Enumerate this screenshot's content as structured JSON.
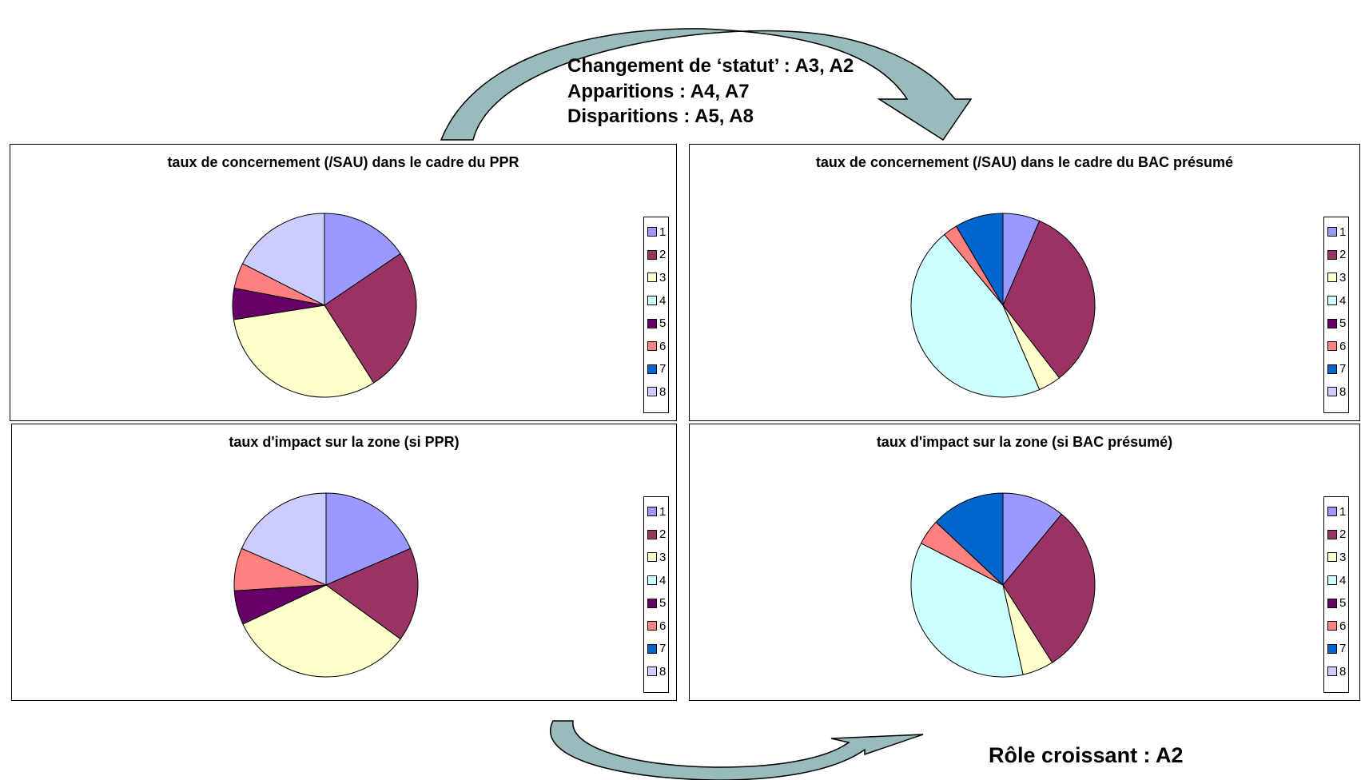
{
  "notes": {
    "top_line1": "Changement de ‘statut’ : A3, A2",
    "top_line2": "Apparitions : A4, A7",
    "top_line3": "Disparitions :  A5, A8",
    "bottom": "Rôle croissant : A2"
  },
  "palette": [
    "#9999FF",
    "#993366",
    "#FFFFCC",
    "#CCFFFF",
    "#660066",
    "#FF8080",
    "#0066CC",
    "#CCCCFF"
  ],
  "arrow_color": "#99BBBB",
  "legend_labels": [
    "1",
    "2",
    "3",
    "4",
    "5",
    "6",
    "7",
    "8"
  ],
  "chart_data": [
    {
      "type": "pie",
      "title": "taux de concernement (/SAU) dans le cadre du PPR",
      "categories": [
        "1",
        "2",
        "3",
        "4",
        "5",
        "6",
        "7",
        "8"
      ],
      "values": [
        15.5,
        25.5,
        31.5,
        0,
        5.5,
        4.5,
        0,
        17.5
      ],
      "legend": "right"
    },
    {
      "type": "pie",
      "title": "taux de concernement (/SAU) dans le cadre du BAC présumé",
      "categories": [
        "1",
        "2",
        "3",
        "4",
        "5",
        "6",
        "7",
        "8"
      ],
      "values": [
        6.5,
        33,
        4,
        45.5,
        0,
        2.5,
        8.5,
        0
      ],
      "legend": "right"
    },
    {
      "type": "pie",
      "title": "taux d'impact sur la zone (si PPR)",
      "categories": [
        "1",
        "2",
        "3",
        "4",
        "5",
        "6",
        "7",
        "8"
      ],
      "values": [
        18.5,
        16.5,
        33,
        0,
        6,
        7.5,
        0,
        18.5
      ],
      "legend": "right"
    },
    {
      "type": "pie",
      "title": "taux d'impact sur la zone (si BAC présumé)",
      "categories": [
        "1",
        "2",
        "3",
        "4",
        "5",
        "6",
        "7",
        "8"
      ],
      "values": [
        11,
        30,
        5.5,
        36,
        0,
        4.5,
        13,
        0
      ],
      "legend": "right"
    }
  ]
}
